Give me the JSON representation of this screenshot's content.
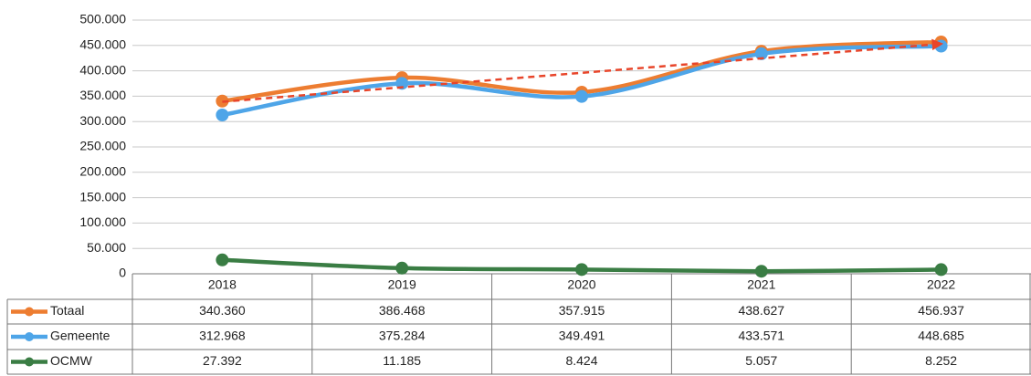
{
  "chart_data": {
    "type": "line",
    "categories": [
      "2018",
      "2019",
      "2020",
      "2021",
      "2022"
    ],
    "series": [
      {
        "name": "Totaal",
        "color": "#ed7d31",
        "trendline": true,
        "values": [
          340360,
          386468,
          357915,
          438627,
          456937
        ],
        "value_labels": [
          "340.360",
          "386.468",
          "357.915",
          "438.627",
          "456.937"
        ]
      },
      {
        "name": "Gemeente",
        "color": "#4ea5e8",
        "values": [
          312968,
          375284,
          349491,
          433571,
          448685
        ],
        "value_labels": [
          "312.968",
          "375.284",
          "349.491",
          "433.571",
          "448.685"
        ]
      },
      {
        "name": "OCMW",
        "color": "#3a7d44",
        "values": [
          27392,
          11185,
          8424,
          5057,
          8252
        ],
        "value_labels": [
          "27.392",
          "11.185",
          "8.424",
          "5.057",
          "8.252"
        ]
      }
    ],
    "ylim": [
      0,
      500000
    ],
    "yticks": [
      0,
      {
        "value": 50000,
        "label": "50.000"
      },
      {
        "value": 100000,
        "label": "100.000"
      },
      {
        "value": 150000,
        "label": "150.000"
      },
      {
        "value": 200000,
        "label": "200.000"
      },
      {
        "value": 250000,
        "label": "250.000"
      },
      {
        "value": 300000,
        "label": "300.000"
      },
      {
        "value": 350000,
        "label": "350.000"
      },
      {
        "value": 400000,
        "label": "400.000"
      },
      {
        "value": 450000,
        "label": "450.000"
      },
      {
        "value": 500000,
        "label": "500.000"
      }
    ],
    "grid": true,
    "data_table": true
  }
}
